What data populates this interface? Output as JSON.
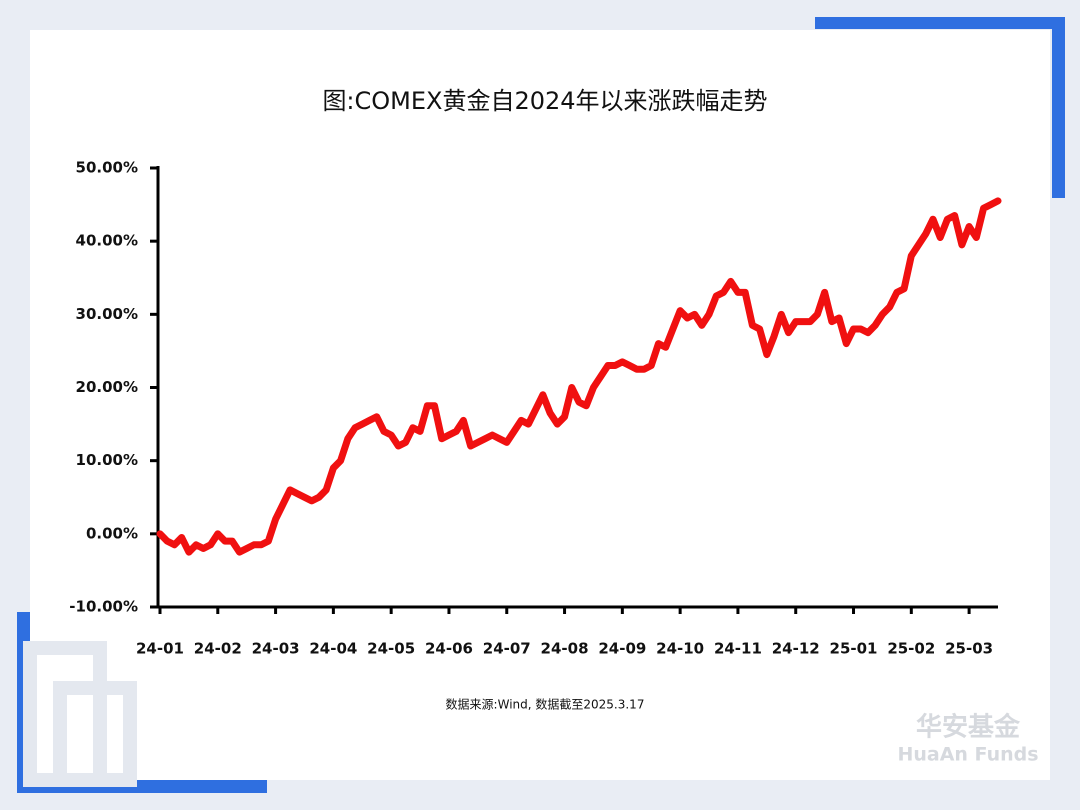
{
  "chart_data": {
    "type": "line",
    "title": "图:COMEX黄金自2024年以来涨跌幅走势",
    "source": "数据来源:Wind, 数据截至2025.3.17",
    "logo": "华安基金",
    "logo_subtitle": "HuaAn Funds",
    "color": "#f01010",
    "categories": [
      "24-01",
      null,
      null,
      null,
      null,
      null,
      null,
      null,
      "24-02",
      null,
      null,
      null,
      null,
      null,
      null,
      null,
      "24-03",
      null,
      null,
      null,
      null,
      null,
      null,
      null,
      "24-04",
      null,
      null,
      null,
      null,
      null,
      null,
      null,
      "24-05",
      null,
      null,
      null,
      null,
      null,
      null,
      null,
      "24-06",
      null,
      null,
      null,
      null,
      null,
      null,
      null,
      "24-07",
      null,
      null,
      null,
      null,
      null,
      null,
      null,
      "24-08",
      null,
      null,
      null,
      null,
      null,
      null,
      null,
      "24-09",
      null,
      null,
      null,
      null,
      null,
      null,
      null,
      "24-10",
      null,
      null,
      null,
      null,
      null,
      null,
      null,
      "24-11",
      null,
      null,
      null,
      null,
      null,
      null,
      null,
      "24-12",
      null,
      null,
      null,
      null,
      null,
      null,
      null,
      "25-01",
      null,
      null,
      null,
      null,
      null,
      null,
      null,
      "25-02",
      null,
      null,
      null,
      null,
      null,
      null,
      null,
      "25-03",
      null,
      null,
      null,
      null
    ],
    "values": [
      0,
      -1,
      -1.5,
      -0.5,
      -2.5,
      -1.5,
      -2,
      -1.5,
      0,
      -1,
      -1,
      -2.5,
      -2,
      -1.5,
      -1.5,
      -1,
      2,
      4,
      6,
      5.5,
      5,
      4.5,
      5,
      6,
      9,
      10,
      13,
      14.5,
      15,
      15.5,
      16,
      14,
      13.5,
      12,
      12.5,
      14.5,
      14,
      17.5,
      17.5,
      13,
      13.5,
      14,
      15.5,
      12,
      12.5,
      13,
      13.5,
      13,
      12.5,
      14,
      15.5,
      15,
      17,
      19,
      16.5,
      15,
      16,
      20,
      18,
      17.5,
      20,
      21.5,
      23,
      23,
      23.5,
      23,
      22.5,
      22.5,
      23,
      26,
      25.5,
      28,
      30.5,
      29.5,
      30,
      28.5,
      30,
      32.5,
      33,
      34.5,
      33,
      33,
      28.5,
      28,
      24.5,
      27,
      30,
      27.5,
      29,
      29,
      29,
      30,
      33,
      29,
      29.5,
      26,
      28,
      28,
      27.5,
      28.5,
      30,
      31,
      33,
      33.5,
      38,
      39.5,
      41,
      43,
      40.5,
      43,
      43.5,
      39.5,
      42,
      40.5,
      44.5,
      45,
      45.5
    ],
    "ylim": [
      -10,
      50
    ],
    "yticks": [
      {
        "value": -10,
        "label": "-10.00%"
      },
      {
        "value": 0,
        "label": "0.00%"
      },
      {
        "value": 10,
        "label": "10.00%"
      },
      {
        "value": 20,
        "label": "20.00%"
      },
      {
        "value": 30,
        "label": "30.00%"
      },
      {
        "value": 40,
        "label": "40.00%"
      },
      {
        "value": 50,
        "label": "50.00%"
      }
    ]
  }
}
